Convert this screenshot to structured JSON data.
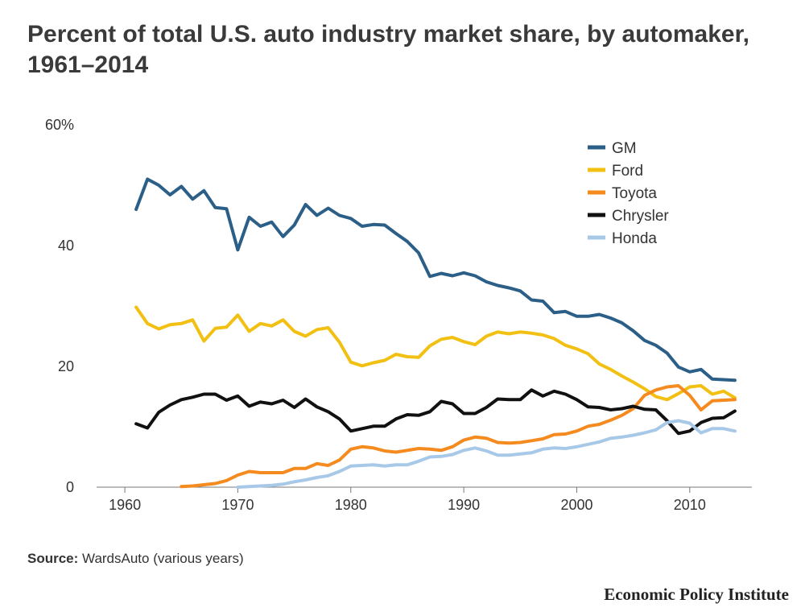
{
  "title": "Percent of total U.S. auto industry market share, by automaker, 1961–2014",
  "source_label": "Source:",
  "source_text": "WardsAuto (various years)",
  "publisher": "Economic Policy Institute",
  "chart_data": {
    "type": "line",
    "title": "Percent of total U.S. auto industry market share, by automaker, 1961–2014",
    "xlabel": "",
    "ylabel": "",
    "xlim": [
      1957.5,
      2015.5
    ],
    "ylim": [
      0,
      60
    ],
    "x_ticks": [
      1960,
      1970,
      1980,
      1990,
      2000,
      2010
    ],
    "x_tick_labels": [
      "1960",
      "1970",
      "1980",
      "1990",
      "2000",
      "2010"
    ],
    "y_ticks": [
      0,
      20,
      40,
      60
    ],
    "y_tick_labels": [
      "0",
      "20",
      "40",
      "60%"
    ],
    "grid": false,
    "legend_position": "top-right",
    "series": [
      {
        "name": "GM",
        "color": "#2b5f87",
        "x": [
          1961,
          1962,
          1963,
          1964,
          1965,
          1966,
          1967,
          1968,
          1969,
          1970,
          1971,
          1972,
          1973,
          1974,
          1975,
          1976,
          1977,
          1978,
          1979,
          1980,
          1981,
          1982,
          1983,
          1984,
          1985,
          1986,
          1987,
          1988,
          1989,
          1990,
          1991,
          1992,
          1993,
          1994,
          1995,
          1996,
          1997,
          1998,
          1999,
          2000,
          2001,
          2002,
          2003,
          2004,
          2005,
          2006,
          2007,
          2008,
          2009,
          2010,
          2011,
          2012,
          2013,
          2014
        ],
        "values": [
          46.0,
          51.0,
          50.0,
          48.4,
          49.8,
          47.7,
          49.1,
          46.3,
          46.1,
          39.3,
          44.7,
          43.2,
          43.9,
          41.5,
          43.4,
          46.8,
          45.0,
          46.2,
          45.0,
          44.5,
          43.2,
          43.5,
          43.4,
          42.0,
          40.7,
          38.8,
          34.9,
          35.4,
          35.0,
          35.5,
          35.0,
          34.0,
          33.4,
          33.0,
          32.5,
          31.0,
          30.8,
          28.9,
          29.1,
          28.3,
          28.3,
          28.6,
          28.0,
          27.2,
          25.9,
          24.3,
          23.5,
          22.2,
          19.9,
          19.1,
          19.5,
          17.9,
          17.8,
          17.7
        ]
      },
      {
        "name": "Ford",
        "color": "#f2c012",
        "x": [
          1961,
          1962,
          1963,
          1964,
          1965,
          1966,
          1967,
          1968,
          1969,
          1970,
          1971,
          1972,
          1973,
          1974,
          1975,
          1976,
          1977,
          1978,
          1979,
          1980,
          1981,
          1982,
          1983,
          1984,
          1985,
          1986,
          1987,
          1988,
          1989,
          1990,
          1991,
          1992,
          1993,
          1994,
          1995,
          1996,
          1997,
          1998,
          1999,
          2000,
          2001,
          2002,
          2003,
          2004,
          2005,
          2006,
          2007,
          2008,
          2009,
          2010,
          2011,
          2012,
          2013,
          2014
        ],
        "values": [
          29.8,
          27.1,
          26.2,
          26.9,
          27.1,
          27.7,
          24.2,
          26.3,
          26.5,
          28.5,
          25.8,
          27.1,
          26.7,
          27.7,
          25.8,
          25.0,
          26.1,
          26.4,
          24.0,
          20.7,
          20.1,
          20.6,
          21.0,
          22.0,
          21.6,
          21.5,
          23.4,
          24.5,
          24.8,
          24.1,
          23.6,
          25.0,
          25.7,
          25.4,
          25.7,
          25.5,
          25.2,
          24.6,
          23.5,
          22.9,
          22.1,
          20.4,
          19.5,
          18.4,
          17.4,
          16.3,
          15.0,
          14.5,
          15.5,
          16.6,
          16.8,
          15.4,
          15.9,
          14.8
        ]
      },
      {
        "name": "Toyota",
        "color": "#f58a1f",
        "x": [
          1965,
          1966,
          1967,
          1968,
          1969,
          1970,
          1971,
          1972,
          1973,
          1974,
          1975,
          1976,
          1977,
          1978,
          1979,
          1980,
          1981,
          1982,
          1983,
          1984,
          1985,
          1986,
          1987,
          1988,
          1989,
          1990,
          1991,
          1992,
          1993,
          1994,
          1995,
          1996,
          1997,
          1998,
          1999,
          2000,
          2001,
          2002,
          2003,
          2004,
          2005,
          2006,
          2007,
          2008,
          2009,
          2010,
          2011,
          2012,
          2013,
          2014
        ],
        "values": [
          0.1,
          0.2,
          0.4,
          0.6,
          1.1,
          2.0,
          2.6,
          2.4,
          2.4,
          2.4,
          3.1,
          3.1,
          3.9,
          3.6,
          4.5,
          6.3,
          6.7,
          6.5,
          6.0,
          5.8,
          6.1,
          6.4,
          6.3,
          6.1,
          6.7,
          7.8,
          8.3,
          8.1,
          7.4,
          7.3,
          7.4,
          7.7,
          8.0,
          8.7,
          8.8,
          9.3,
          10.1,
          10.4,
          11.1,
          11.9,
          13.0,
          15.2,
          16.1,
          16.6,
          16.8,
          15.2,
          12.8,
          14.3,
          14.4,
          14.5
        ]
      },
      {
        "name": "Chrysler",
        "color": "#111111",
        "x": [
          1961,
          1962,
          1963,
          1964,
          1965,
          1966,
          1967,
          1968,
          1969,
          1970,
          1971,
          1972,
          1973,
          1974,
          1975,
          1976,
          1977,
          1978,
          1979,
          1980,
          1981,
          1982,
          1983,
          1984,
          1985,
          1986,
          1987,
          1988,
          1989,
          1990,
          1991,
          1992,
          1993,
          1994,
          1995,
          1996,
          1997,
          1998,
          1999,
          2000,
          2001,
          2002,
          2003,
          2004,
          2005,
          2006,
          2007,
          2008,
          2009,
          2010,
          2011,
          2012,
          2013,
          2014
        ],
        "values": [
          10.5,
          9.8,
          12.4,
          13.6,
          14.5,
          14.9,
          15.4,
          15.4,
          14.4,
          15.1,
          13.4,
          14.1,
          13.8,
          14.4,
          13.2,
          14.6,
          13.3,
          12.5,
          11.3,
          9.3,
          9.7,
          10.1,
          10.1,
          11.3,
          12.0,
          11.9,
          12.5,
          14.2,
          13.8,
          12.2,
          12.2,
          13.2,
          14.6,
          14.5,
          14.5,
          16.1,
          15.1,
          15.9,
          15.4,
          14.5,
          13.3,
          13.2,
          12.8,
          13.0,
          13.4,
          12.9,
          12.8,
          11.0,
          8.9,
          9.3,
          10.7,
          11.4,
          11.5,
          12.6
        ]
      },
      {
        "name": "Honda",
        "color": "#a8c8e8",
        "x": [
          1970,
          1971,
          1972,
          1973,
          1974,
          1975,
          1976,
          1977,
          1978,
          1979,
          1980,
          1981,
          1982,
          1983,
          1984,
          1985,
          1986,
          1987,
          1988,
          1989,
          1990,
          1991,
          1992,
          1993,
          1994,
          1995,
          1996,
          1997,
          1998,
          1999,
          2000,
          2001,
          2002,
          2003,
          2004,
          2005,
          2006,
          2007,
          2008,
          2009,
          2010,
          2011,
          2012,
          2013,
          2014
        ],
        "values": [
          0.0,
          0.1,
          0.2,
          0.3,
          0.5,
          0.9,
          1.2,
          1.6,
          1.9,
          2.6,
          3.5,
          3.6,
          3.7,
          3.5,
          3.7,
          3.7,
          4.3,
          5.0,
          5.1,
          5.4,
          6.1,
          6.5,
          6.0,
          5.3,
          5.3,
          5.5,
          5.7,
          6.3,
          6.5,
          6.4,
          6.7,
          7.1,
          7.5,
          8.1,
          8.3,
          8.6,
          9.0,
          9.5,
          10.7,
          11.0,
          10.6,
          9.0,
          9.7,
          9.7,
          9.3
        ]
      }
    ]
  }
}
